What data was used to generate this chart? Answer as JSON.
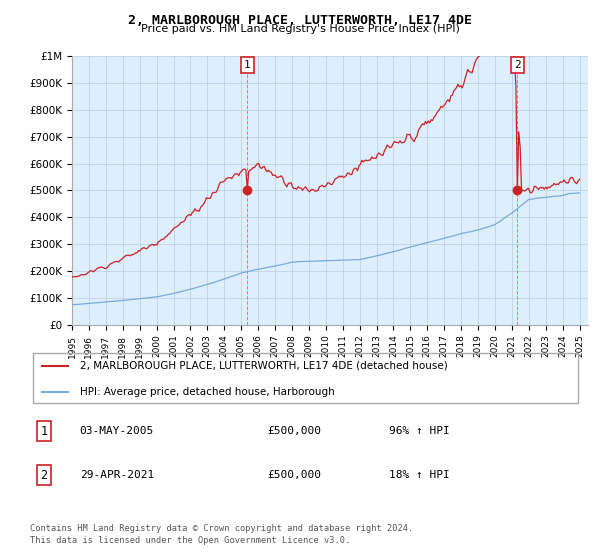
{
  "title": "2, MARLBOROUGH PLACE, LUTTERWORTH, LE17 4DE",
  "subtitle": "Price paid vs. HM Land Registry's House Price Index (HPI)",
  "ylim": [
    0,
    1000000
  ],
  "yticks": [
    0,
    100000,
    200000,
    300000,
    400000,
    500000,
    600000,
    700000,
    800000,
    900000,
    1000000
  ],
  "ytick_labels": [
    "£0",
    "£100K",
    "£200K",
    "£300K",
    "£400K",
    "£500K",
    "£600K",
    "£700K",
    "£800K",
    "£900K",
    "£1M"
  ],
  "x_start_year": 1995,
  "x_end_year": 2025,
  "hpi_color": "#7aaadd",
  "price_color": "#cc2222",
  "chart_bg_color": "#ddeeff",
  "purchase1_year": 2005.37,
  "purchase1_price": 500000,
  "purchase2_year": 2021.33,
  "purchase2_price": 500000,
  "legend_line1": "2, MARLBOROUGH PLACE, LUTTERWORTH, LE17 4DE (detached house)",
  "legend_line2": "HPI: Average price, detached house, Harborough",
  "footer_line1": "Contains HM Land Registry data © Crown copyright and database right 2024.",
  "footer_line2": "This data is licensed under the Open Government Licence v3.0.",
  "background_color": "#ffffff",
  "grid_color": "#bbccdd"
}
